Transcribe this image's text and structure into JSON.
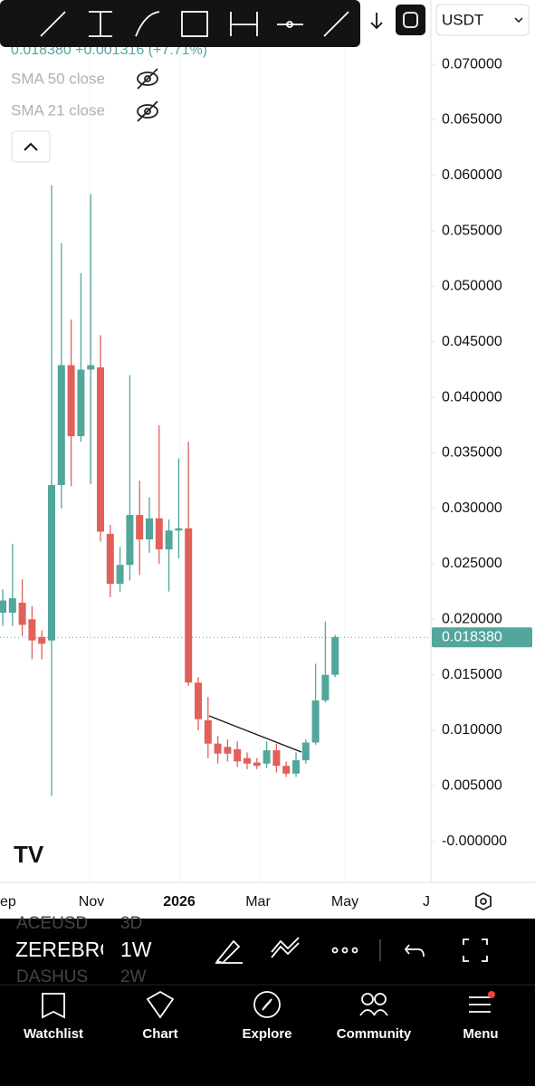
{
  "header": {
    "quote": "0.018380 +0.001316 (+7.71%)",
    "indicators": [
      "SMA 50 close",
      "SMA 21 close"
    ],
    "currency": "USDT"
  },
  "chart_data": {
    "type": "candlestick",
    "open": [
      0.0206,
      0.0206,
      0.0215,
      0.02,
      0.0184,
      0.0181,
      0.0321,
      0.0429,
      0.0365,
      0.0425,
      0.0427,
      0.0277,
      0.0232,
      0.0249,
      0.0294,
      0.0272,
      0.0291,
      0.0263,
      0.028,
      0.0282,
      0.0143,
      0.0109,
      0.0088,
      0.0085,
      0.0083,
      0.0075,
      0.0071,
      0.007,
      0.0082,
      0.0068,
      0.0061,
      0.0073,
      0.0089,
      0.0127,
      0.015
    ],
    "high": [
      0.0227,
      0.0268,
      0.0236,
      0.0212,
      0.019,
      0.0591,
      0.0539,
      0.047,
      0.0512,
      0.0583,
      0.0456,
      0.0285,
      0.0265,
      0.042,
      0.0325,
      0.031,
      0.0375,
      0.029,
      0.0345,
      0.036,
      0.0148,
      0.013,
      0.0095,
      0.0092,
      0.009,
      0.008,
      0.0075,
      0.009,
      0.0088,
      0.0072,
      0.008,
      0.0092,
      0.016,
      0.0198,
      0.0186
    ],
    "low": [
      0.0194,
      0.0194,
      0.0185,
      0.0164,
      0.0164,
      0.0041,
      0.03,
      0.032,
      0.036,
      0.0322,
      0.027,
      0.022,
      0.0225,
      0.0235,
      0.024,
      0.026,
      0.025,
      0.0225,
      0.0255,
      0.014,
      0.01,
      0.0075,
      0.007,
      0.0072,
      0.0067,
      0.0065,
      0.0065,
      0.0066,
      0.0062,
      0.0058,
      0.0058,
      0.007,
      0.0087,
      0.0125,
      0.0148
    ],
    "close": [
      0.0217,
      0.0219,
      0.0195,
      0.0181,
      0.0178,
      0.0321,
      0.0429,
      0.0365,
      0.0425,
      0.0429,
      0.0279,
      0.0232,
      0.0249,
      0.0294,
      0.0272,
      0.0291,
      0.0263,
      0.028,
      0.0282,
      0.0143,
      0.011,
      0.0088,
      0.0079,
      0.0079,
      0.0072,
      0.007,
      0.0068,
      0.0082,
      0.0068,
      0.0061,
      0.0073,
      0.0089,
      0.0127,
      0.015,
      0.0184
    ],
    "up_color": "#52a69b",
    "down_color": "#e1605a",
    "ylim": [
      -0.0037,
      0.0758
    ],
    "yticks": [
      {
        "value": 0,
        "label": "-0.000000"
      },
      {
        "value": 0.005,
        "label": "0.005000"
      },
      {
        "value": 0.01,
        "label": "0.010000"
      },
      {
        "value": 0.015,
        "label": "0.015000"
      },
      {
        "value": 0.02,
        "label": "0.020000"
      },
      {
        "value": 0.025,
        "label": "0.025000"
      },
      {
        "value": 0.03,
        "label": "0.030000"
      },
      {
        "value": 0.035,
        "label": "0.035000"
      },
      {
        "value": 0.04,
        "label": "0.040000"
      },
      {
        "value": 0.045,
        "label": "0.045000"
      },
      {
        "value": 0.05,
        "label": "0.050000"
      },
      {
        "value": 0.055,
        "label": "0.055000"
      },
      {
        "value": 0.06,
        "label": "0.060000"
      },
      {
        "value": 0.065,
        "label": "0.065000"
      },
      {
        "value": 0.07,
        "label": "0.070000"
      }
    ],
    "x_labels": [
      "ep",
      "Nov",
      "2026",
      "Mar",
      "May",
      "J"
    ],
    "last_price": {
      "value": 0.01838,
      "label": "0.018380"
    }
  },
  "symbols": [
    {
      "name": "ACEUSD",
      "interval": "3D"
    },
    {
      "name": "ZEREBRO",
      "interval": "1W"
    },
    {
      "name": "DASHUS",
      "interval": "2W"
    }
  ],
  "nav": [
    "Watchlist",
    "Chart",
    "Explore",
    "Community",
    "Menu"
  ]
}
